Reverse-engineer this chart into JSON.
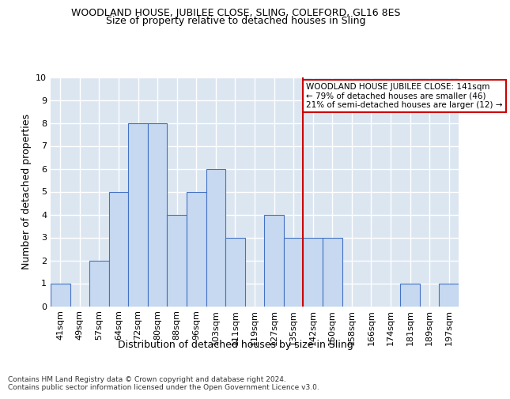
{
  "title": "WOODLAND HOUSE, JUBILEE CLOSE, SLING, COLEFORD, GL16 8ES",
  "subtitle": "Size of property relative to detached houses in Sling",
  "xlabel": "Distribution of detached houses by size in Sling",
  "ylabel": "Number of detached properties",
  "categories": [
    "41sqm",
    "49sqm",
    "57sqm",
    "64sqm",
    "72sqm",
    "80sqm",
    "88sqm",
    "96sqm",
    "103sqm",
    "111sqm",
    "119sqm",
    "127sqm",
    "135sqm",
    "142sqm",
    "150sqm",
    "158sqm",
    "166sqm",
    "174sqm",
    "181sqm",
    "189sqm",
    "197sqm"
  ],
  "values": [
    1,
    0,
    2,
    5,
    8,
    8,
    4,
    5,
    6,
    3,
    0,
    4,
    3,
    3,
    3,
    0,
    0,
    0,
    1,
    0,
    1
  ],
  "bar_color": "#c6d9f0",
  "bar_edge_color": "#4472c4",
  "background_color": "#dce6f1",
  "grid_color": "#ffffff",
  "redline_index": 13,
  "annotation_text": "WOODLAND HOUSE JUBILEE CLOSE: 141sqm\n← 79% of detached houses are smaller (46)\n21% of semi-detached houses are larger (12) →",
  "annotation_box_color": "#ffffff",
  "annotation_border_color": "#cc0000",
  "footnote": "Contains HM Land Registry data © Crown copyright and database right 2024.\nContains public sector information licensed under the Open Government Licence v3.0.",
  "ylim": [
    0,
    10
  ],
  "yticks": [
    0,
    1,
    2,
    3,
    4,
    5,
    6,
    7,
    8,
    9,
    10
  ],
  "title_fontsize": 9,
  "subtitle_fontsize": 9,
  "ylabel_fontsize": 9,
  "xlabel_fontsize": 9,
  "tick_fontsize": 8,
  "footnote_fontsize": 6.5
}
